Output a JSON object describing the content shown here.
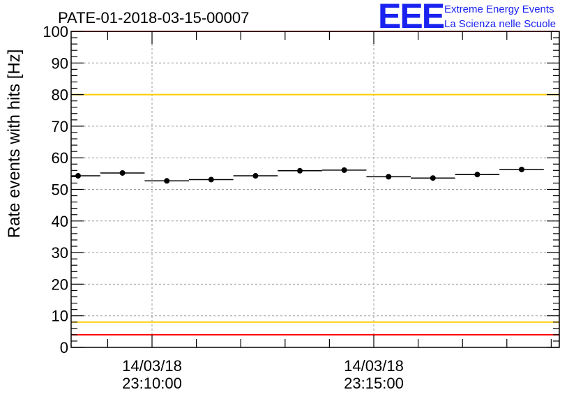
{
  "chart_data": {
    "type": "scatter",
    "title": "PATE-01-2018-03-15-00007",
    "ylabel": "Rate events with hits [Hz]",
    "xlabel": "",
    "ylim": [
      0,
      100
    ],
    "yticks": [
      0,
      10,
      20,
      30,
      40,
      50,
      60,
      70,
      80,
      90,
      100
    ],
    "grid": true,
    "xticks": [
      {
        "date": "14/03/18",
        "time": "23:10:00"
      },
      {
        "date": "14/03/18",
        "time": "23:15:00"
      }
    ],
    "bin_width_seconds": 60,
    "series": [
      {
        "x": [
          "23:08:20",
          "23:09:20",
          "23:10:20",
          "23:11:20",
          "23:12:20",
          "23:13:20",
          "23:14:20",
          "23:15:20",
          "23:16:20",
          "23:17:20",
          "23:18:20"
        ],
        "values": [
          54.3,
          55.2,
          52.7,
          53.1,
          54.3,
          55.9,
          56.1,
          54.0,
          53.6,
          54.7,
          56.3
        ]
      }
    ],
    "reference_lines": [
      {
        "value": 100,
        "color": "#ff0000"
      },
      {
        "value": 80,
        "color": "#ffcc00"
      },
      {
        "value": 8,
        "color": "#ffcc00"
      },
      {
        "value": 4,
        "color": "#ff0000"
      }
    ]
  },
  "logo": {
    "mark": "EEE",
    "line1": "Extreme Energy Events",
    "line2": "La Scienza nelle Scuole"
  },
  "colors": {
    "logo": "#1a22f0",
    "points": "#000000",
    "grid": "#9a9a9a"
  }
}
